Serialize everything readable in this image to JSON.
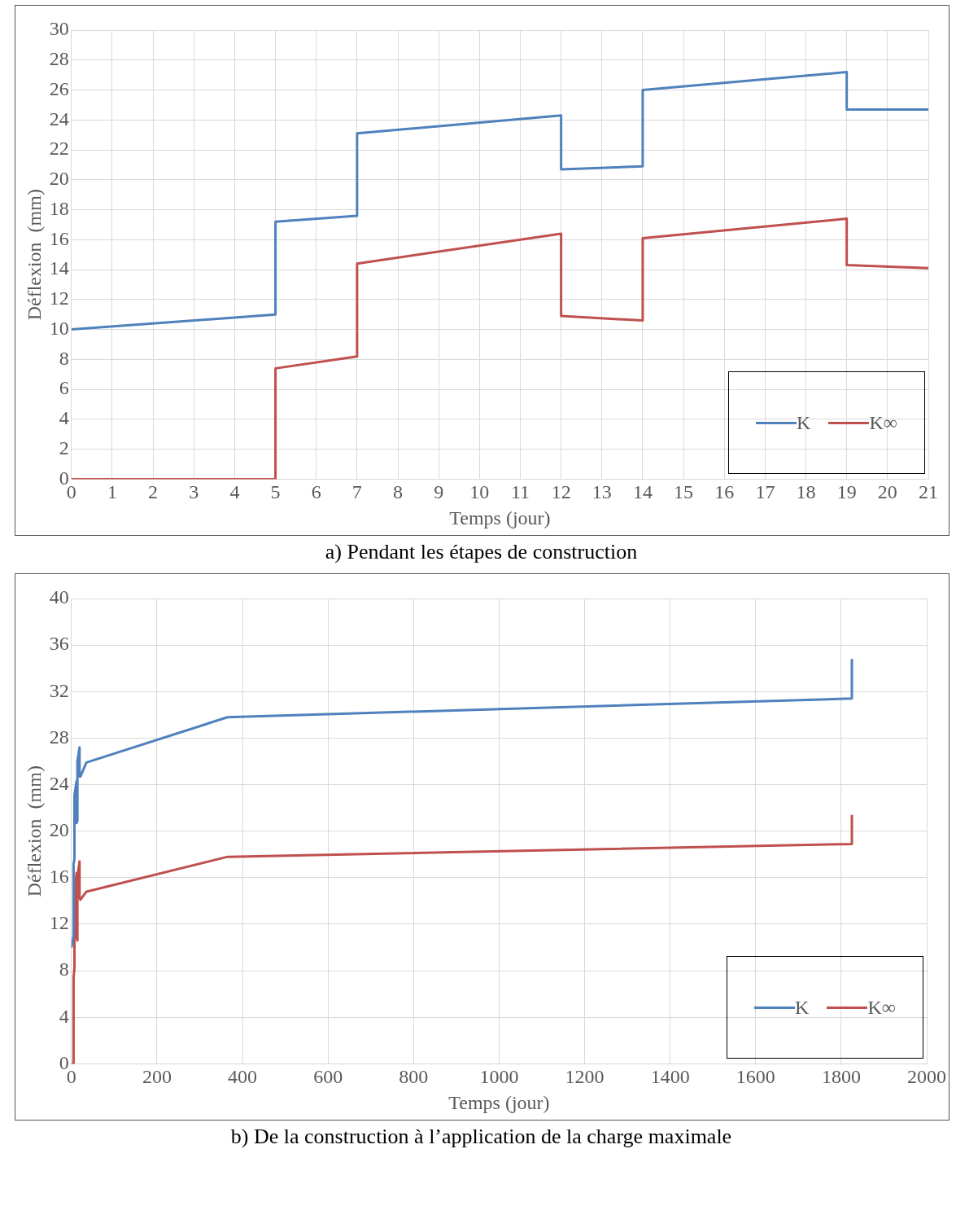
{
  "chart_data": [
    {
      "type": "line",
      "title": "a)    Pendant les étapes de construction",
      "xlabel": "Temps (jour)",
      "ylabel": "Déflexion  (mm)",
      "xlim": [
        0,
        21
      ],
      "xticks": [
        0,
        1,
        2,
        3,
        4,
        5,
        6,
        7,
        8,
        9,
        10,
        11,
        12,
        13,
        14,
        15,
        16,
        17,
        18,
        19,
        20,
        21
      ],
      "ylim": [
        0,
        30
      ],
      "yticks": [
        0,
        2,
        4,
        6,
        8,
        10,
        12,
        14,
        16,
        18,
        20,
        22,
        24,
        26,
        28,
        30
      ],
      "grid": true,
      "legend": "bottom right",
      "marker": "none",
      "line_style": "solid",
      "series": [
        {
          "name": "K",
          "color": "#4f81bd",
          "x": [
            0,
            5,
            5,
            7,
            7,
            12,
            12,
            14,
            14,
            19,
            19,
            21
          ],
          "values": [
            10.0,
            11.0,
            17.2,
            17.6,
            23.1,
            24.3,
            20.7,
            20.9,
            26.0,
            27.2,
            24.7,
            24.7
          ]
        },
        {
          "name": "K∞",
          "color": "#c0504d",
          "x": [
            0,
            5,
            5,
            7,
            7,
            12,
            12,
            14,
            14,
            19,
            19,
            21
          ],
          "values": [
            0,
            0,
            7.4,
            8.2,
            14.4,
            16.4,
            10.9,
            10.6,
            16.1,
            17.4,
            14.3,
            14.1
          ]
        }
      ]
    },
    {
      "type": "line",
      "title": "b)   De la construction à l’application de la charge maximale",
      "xlabel": "Temps (jour)",
      "ylabel": "Déflexion  (mm)",
      "xlim": [
        0,
        2000
      ],
      "xticks": [
        0,
        200,
        400,
        600,
        800,
        1000,
        1200,
        1400,
        1600,
        1800,
        2000
      ],
      "ylim": [
        0,
        40
      ],
      "yticks": [
        0,
        4,
        8,
        12,
        16,
        20,
        24,
        28,
        32,
        36,
        40
      ],
      "grid": true,
      "legend": "bottom right",
      "marker": "none",
      "line_style": "solid",
      "series": [
        {
          "name": "K",
          "color": "#4f81bd",
          "x": [
            0,
            5,
            5,
            7,
            7,
            12,
            12,
            14,
            14,
            19,
            19,
            21,
            35,
            365,
            1825,
            1825
          ],
          "values": [
            10.0,
            11.0,
            17.2,
            17.6,
            23.1,
            24.3,
            20.7,
            20.9,
            26.0,
            27.2,
            24.7,
            24.7,
            25.9,
            29.8,
            31.4,
            34.8
          ]
        },
        {
          "name": "K∞",
          "color": "#c0504d",
          "x": [
            0,
            5,
            5,
            7,
            7,
            12,
            12,
            14,
            14,
            19,
            19,
            21,
            35,
            365,
            1825,
            1825
          ],
          "values": [
            0,
            0,
            7.4,
            8.2,
            14.4,
            16.4,
            10.9,
            10.6,
            16.1,
            17.4,
            14.3,
            14.1,
            14.8,
            17.8,
            18.9,
            21.4
          ]
        }
      ]
    }
  ]
}
